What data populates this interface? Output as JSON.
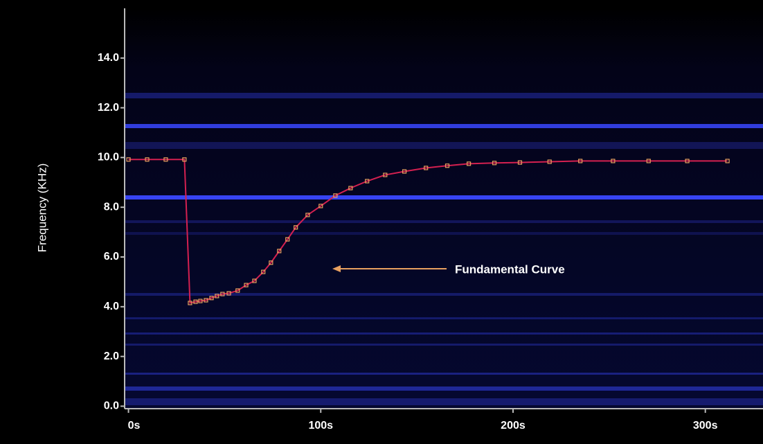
{
  "chart_data": {
    "type": "line",
    "y_label": "Frequency (KHz)",
    "annotation": "Fundamental Curve",
    "xlim": [
      -2,
      330
    ],
    "ylim": [
      -0.1,
      16
    ],
    "xticks": [
      {
        "value": 0,
        "label": "0s"
      },
      {
        "value": 100,
        "label": "100s"
      },
      {
        "value": 200,
        "label": "200s"
      },
      {
        "value": 300,
        "label": "300s"
      }
    ],
    "yticks": [
      {
        "value": 0,
        "label": "0.0"
      },
      {
        "value": 2,
        "label": "2.0"
      },
      {
        "value": 4,
        "label": "4.0"
      },
      {
        "value": 6,
        "label": "6.0"
      },
      {
        "value": 8,
        "label": "8.0"
      },
      {
        "value": 10,
        "label": "10.0"
      },
      {
        "value": 12,
        "label": "12.0"
      },
      {
        "value": 14,
        "label": "14.0"
      }
    ],
    "x": [
      0,
      9.7,
      19.4,
      29.1,
      32,
      34.9,
      37.4,
      40.3,
      43.2,
      46,
      48.9,
      52.2,
      56.8,
      61.2,
      65.5,
      70.1,
      74.1,
      78.4,
      82.7,
      87,
      93.2,
      100,
      107.6,
      115.5,
      124.1,
      133.5,
      143.5,
      154.7,
      165.8,
      177,
      190.3,
      203.6,
      219,
      235,
      252,
      270.5,
      290.6,
      311.5
    ],
    "series": [
      {
        "color": "#d42050",
        "marker_color": "#e8a060",
        "values": [
          9.92,
          9.92,
          9.92,
          9.92,
          4.15,
          4.2,
          4.23,
          4.26,
          4.35,
          4.43,
          4.51,
          4.54,
          4.65,
          4.87,
          5.04,
          5.4,
          5.77,
          6.24,
          6.71,
          7.19,
          7.69,
          8.05,
          8.47,
          8.77,
          9.05,
          9.3,
          9.44,
          9.58,
          9.67,
          9.75,
          9.78,
          9.8,
          9.83,
          9.86,
          9.86,
          9.86,
          9.86,
          9.86
        ]
      }
    ]
  }
}
